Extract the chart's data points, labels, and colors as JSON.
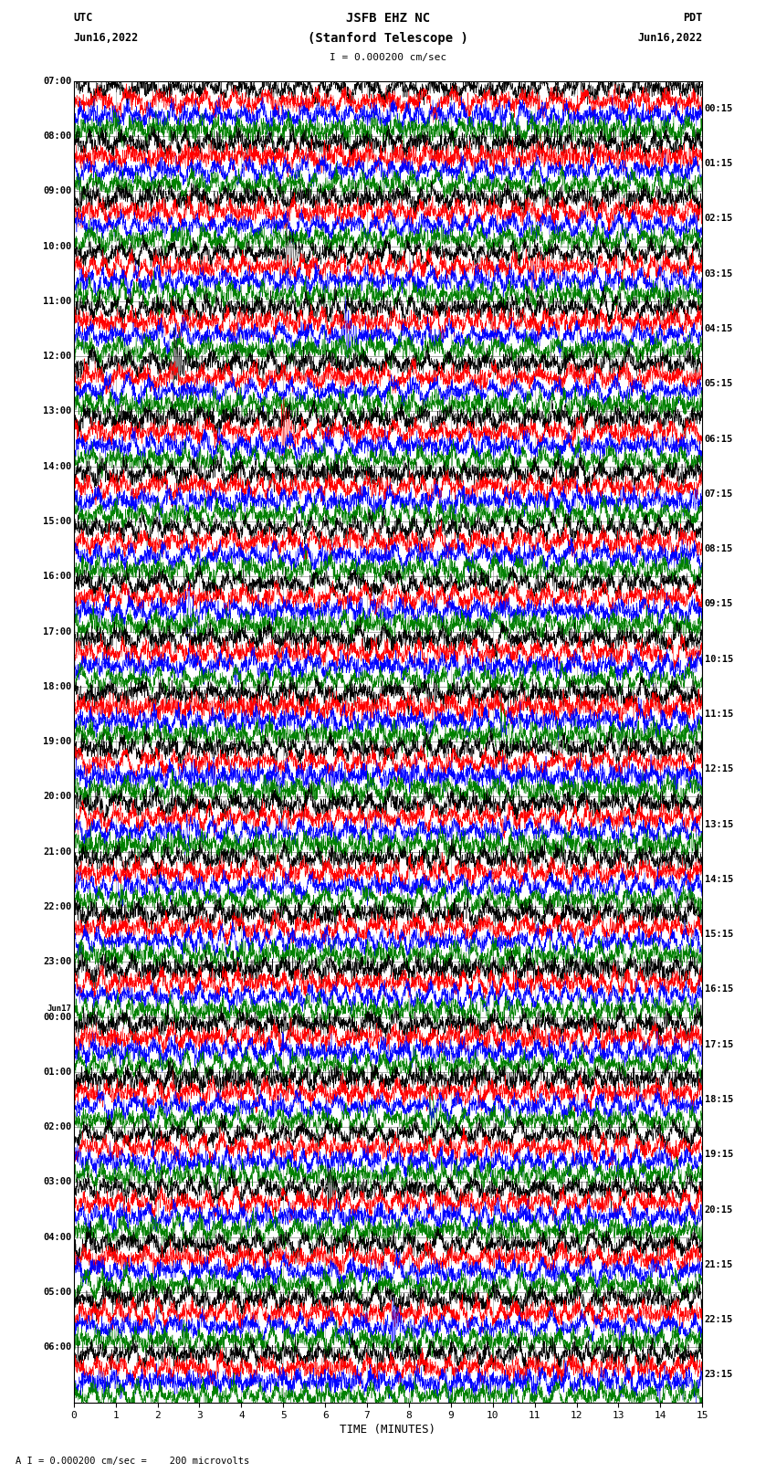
{
  "title_line1": "JSFB EHZ NC",
  "title_line2": "(Stanford Telescope )",
  "scale_text": "I = 0.000200 cm/sec",
  "bottom_text": "A I = 0.000200 cm/sec =    200 microvolts",
  "xlabel": "TIME (MINUTES)",
  "utc_label": "UTC",
  "utc_date": "Jun16,2022",
  "pdt_label": "PDT",
  "pdt_date": "Jun16,2022",
  "left_times_utc": [
    "07:00",
    "08:00",
    "09:00",
    "10:00",
    "11:00",
    "12:00",
    "13:00",
    "14:00",
    "15:00",
    "16:00",
    "17:00",
    "18:00",
    "19:00",
    "20:00",
    "21:00",
    "22:00",
    "23:00",
    "Jun17\n00:00",
    "01:00",
    "02:00",
    "03:00",
    "04:00",
    "05:00",
    "06:00"
  ],
  "right_times_pdt": [
    "00:15",
    "01:15",
    "02:15",
    "03:15",
    "04:15",
    "05:15",
    "06:15",
    "07:15",
    "08:15",
    "09:15",
    "10:15",
    "11:15",
    "12:15",
    "13:15",
    "14:15",
    "15:15",
    "16:15",
    "17:15",
    "18:15",
    "19:15",
    "20:15",
    "21:15",
    "22:15",
    "23:15"
  ],
  "trace_color_cycle": [
    "black",
    "red",
    "blue",
    "green"
  ],
  "num_rows": 24,
  "traces_per_row": 4,
  "background_color": "white",
  "xmin": 0,
  "xmax": 15,
  "x_ticks": [
    0,
    1,
    2,
    3,
    4,
    5,
    6,
    7,
    8,
    9,
    10,
    11,
    12,
    13,
    14,
    15
  ],
  "grid_color": "#aaaaaa",
  "row_separator_color": "#888888"
}
